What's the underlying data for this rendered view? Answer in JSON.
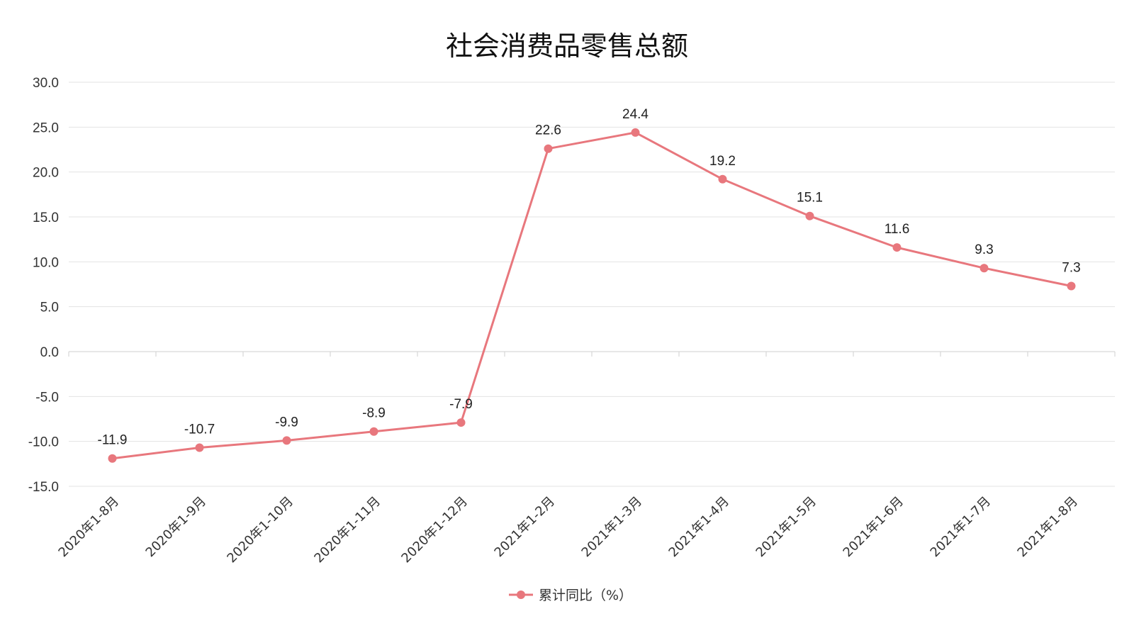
{
  "chart_data": {
    "type": "line",
    "title": "社会消费品零售总额",
    "categories": [
      "2020年1-8月",
      "2020年1-9月",
      "2020年1-10月",
      "2020年1-11月",
      "2020年1-12月",
      "2021年1-2月",
      "2021年1-3月",
      "2021年1-4月",
      "2021年1-5月",
      "2021年1-6月",
      "2021年1-7月",
      "2021年1-8月"
    ],
    "series": [
      {
        "name": "累计同比（%）",
        "values": [
          -11.9,
          -10.7,
          -9.9,
          -8.9,
          -7.9,
          22.6,
          24.4,
          19.2,
          15.1,
          11.6,
          9.3,
          7.3
        ],
        "color": "#e8777d"
      }
    ],
    "data_labels": [
      "-11.9",
      "-10.7",
      "-9.9",
      "-8.9",
      "-7.9",
      "22.6",
      "24.4",
      "19.2",
      "15.1",
      "11.6",
      "9.3",
      "7.3"
    ],
    "y_ticks": [
      "30.0",
      "25.0",
      "20.0",
      "15.0",
      "10.0",
      "5.0",
      "0.0",
      "-5.0",
      "-10.0",
      "-15.0"
    ],
    "ylim": [
      -15,
      30
    ],
    "xlabel": "",
    "ylabel": "",
    "grid": true,
    "legend_position": "bottom-center"
  }
}
